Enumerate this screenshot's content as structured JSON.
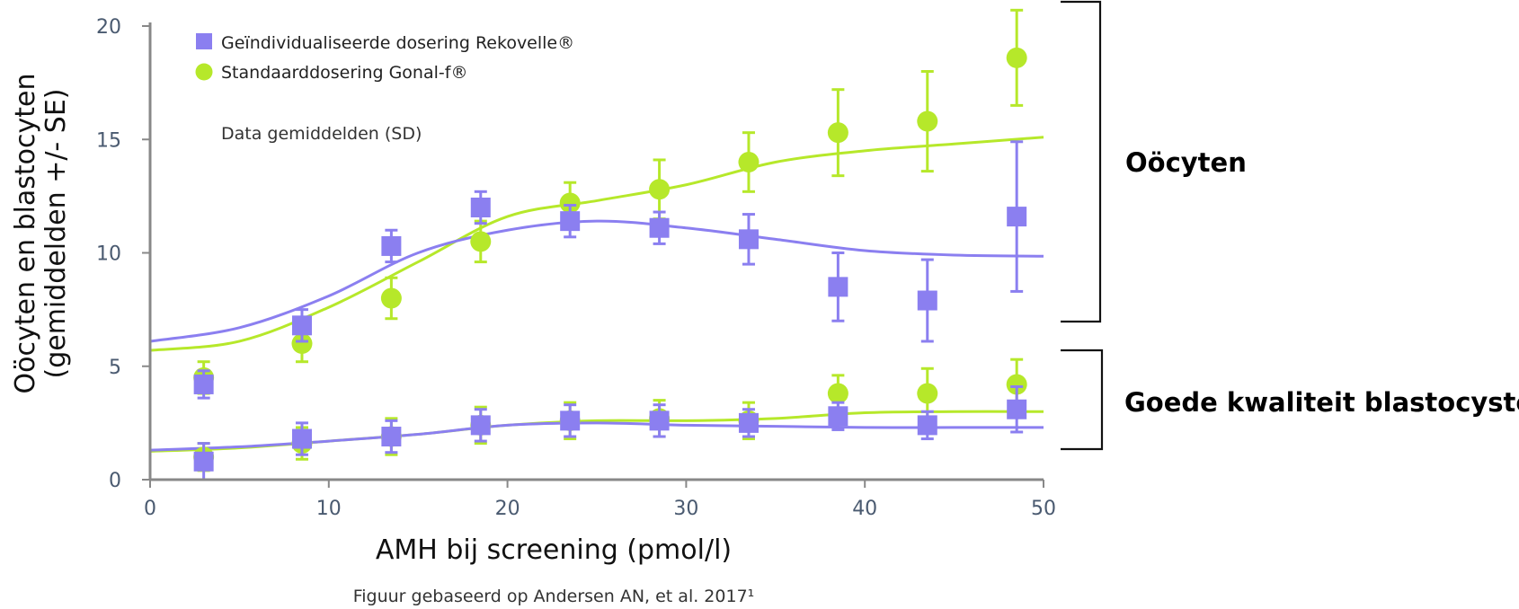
{
  "colors": {
    "series_a": "#8b7ff0",
    "series_b": "#b6e82a",
    "axis": "#888888",
    "bracket": "#111111"
  },
  "legend": [
    {
      "label": "Geïndividualiseerde dosering Rekovelle®",
      "marker": "square",
      "color": "#8b7ff0"
    },
    {
      "label": "Standaarddosering Gonal-f®",
      "marker": "circle",
      "color": "#b6e82a"
    }
  ],
  "note": "Data gemiddelden (SD)",
  "groups": [
    {
      "label": "Oöcyten",
      "range": [
        7,
        21
      ]
    },
    {
      "label": "Goede kwaliteit blastocysten",
      "range": [
        1.3,
        5.7
      ]
    }
  ],
  "source": "Figuur gebaseerd op Andersen AN, et al. 2017¹",
  "chart_data": {
    "type": "scatter",
    "title": "",
    "xlabel": "AMH bij screening (pmol/l)",
    "ylabel_lines": [
      "Oöcyten en blastocyten",
      "(gemiddelden +/- SE)"
    ],
    "xlim": [
      0,
      50
    ],
    "ylim": [
      0,
      20
    ],
    "xticks": [
      0,
      10,
      20,
      30,
      40,
      50
    ],
    "yticks": [
      0,
      5,
      10,
      15,
      20
    ],
    "grid": false,
    "legend_position": "top-left",
    "x": [
      3,
      8.5,
      13.5,
      18.5,
      23.5,
      28.5,
      33.5,
      38.5,
      43.5,
      48.5
    ],
    "series": [
      {
        "name": "Geïndividualiseerde dosering Rekovelle®",
        "group": "Oöcyten",
        "marker": "square",
        "values": [
          4.2,
          6.8,
          10.3,
          12.0,
          11.4,
          11.1,
          10.6,
          8.5,
          7.9,
          11.6
        ],
        "error": [
          0.6,
          0.7,
          0.7,
          0.7,
          0.7,
          0.7,
          1.1,
          1.5,
          1.8,
          3.3
        ],
        "fit_curve": [
          [
            0,
            6.1
          ],
          [
            5,
            6.7
          ],
          [
            10,
            8.1
          ],
          [
            15,
            10.0
          ],
          [
            20,
            11.0
          ],
          [
            25,
            11.4
          ],
          [
            30,
            11.1
          ],
          [
            35,
            10.6
          ],
          [
            40,
            10.1
          ],
          [
            45,
            9.9
          ],
          [
            50,
            9.85
          ]
        ]
      },
      {
        "name": "Standaarddosering Gonal-f®",
        "group": "Oöcyten",
        "marker": "circle",
        "values": [
          4.5,
          6.0,
          8.0,
          10.5,
          12.2,
          12.8,
          14.0,
          15.3,
          15.8,
          18.6
        ],
        "error": [
          0.7,
          0.8,
          0.9,
          0.9,
          0.9,
          1.3,
          1.3,
          1.9,
          2.2,
          2.1
        ],
        "fit_curve": [
          [
            0,
            5.7
          ],
          [
            5,
            6.1
          ],
          [
            10,
            7.6
          ],
          [
            15,
            9.6
          ],
          [
            20,
            11.6
          ],
          [
            25,
            12.3
          ],
          [
            30,
            13.0
          ],
          [
            35,
            14.0
          ],
          [
            40,
            14.5
          ],
          [
            45,
            14.8
          ],
          [
            50,
            15.1
          ]
        ]
      },
      {
        "name": "Geïndividualiseerde dosering Rekovelle®",
        "group": "Goede kwaliteit blastocysten",
        "marker": "square",
        "values": [
          0.8,
          1.8,
          1.9,
          2.4,
          2.6,
          2.6,
          2.5,
          2.8,
          2.4,
          3.1
        ],
        "error": [
          0.8,
          0.7,
          0.7,
          0.7,
          0.7,
          0.7,
          0.6,
          0.6,
          0.6,
          1.0
        ],
        "fit_curve": [
          [
            0,
            1.3
          ],
          [
            5,
            1.45
          ],
          [
            10,
            1.7
          ],
          [
            15,
            2.0
          ],
          [
            20,
            2.4
          ],
          [
            25,
            2.5
          ],
          [
            30,
            2.4
          ],
          [
            35,
            2.35
          ],
          [
            40,
            2.3
          ],
          [
            45,
            2.3
          ],
          [
            50,
            2.3
          ]
        ]
      },
      {
        "name": "Standaarddosering Gonal-f®",
        "group": "Goede kwaliteit blastocysten",
        "marker": "circle",
        "values": [
          1.0,
          1.6,
          1.9,
          2.4,
          2.6,
          2.7,
          2.6,
          3.8,
          3.8,
          4.2
        ],
        "error": [
          0.6,
          0.7,
          0.8,
          0.8,
          0.8,
          0.8,
          0.8,
          0.8,
          1.1,
          1.1
        ],
        "fit_curve": [
          [
            0,
            1.25
          ],
          [
            5,
            1.4
          ],
          [
            10,
            1.7
          ],
          [
            15,
            2.0
          ],
          [
            20,
            2.4
          ],
          [
            25,
            2.6
          ],
          [
            30,
            2.6
          ],
          [
            35,
            2.7
          ],
          [
            40,
            2.95
          ],
          [
            45,
            3.0
          ],
          [
            50,
            3.0
          ]
        ]
      }
    ]
  }
}
